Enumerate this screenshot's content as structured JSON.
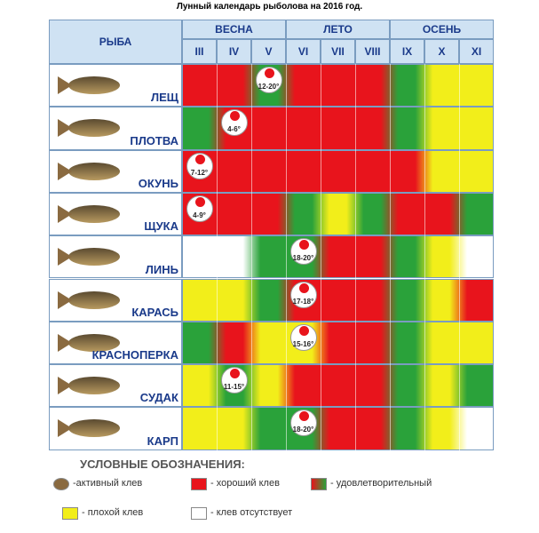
{
  "title": "Лунный календарь рыболова на 2016 год.",
  "table": {
    "fish_header": "РЫБА",
    "seasons": [
      {
        "name": "ВЕСНА",
        "months": [
          "III",
          "IV",
          "V"
        ]
      },
      {
        "name": "ЛЕТО",
        "months": [
          "VI",
          "VII",
          "VIII"
        ]
      },
      {
        "name": "ОСЕНЬ",
        "months": [
          "IX",
          "X",
          "XI"
        ]
      }
    ],
    "rows": [
      {
        "name": "ЛЕЩ",
        "colors": [
          "#e8141c",
          "#e8141c",
          "#2aa23a",
          "#e8141c",
          "#e8141c",
          "#e8141c",
          "#2aa23a",
          "#f2ee1a",
          "#f2ee1a"
        ],
        "badge": {
          "text": "12-20°",
          "month": 2
        }
      },
      {
        "name": "ПЛОТВА",
        "colors": [
          "#2aa23a",
          "#e8141c",
          "#e8141c",
          "#e8141c",
          "#e8141c",
          "#e8141c",
          "#2aa23a",
          "#f2ee1a",
          "#f2ee1a"
        ],
        "badge": {
          "text": "4-6°",
          "month": 1
        }
      },
      {
        "name": "ОКУНЬ",
        "colors": [
          "#e8141c",
          "#e8141c",
          "#e8141c",
          "#e8141c",
          "#e8141c",
          "#e8141c",
          "#e8141c",
          "#f2ee1a",
          "#f2ee1a"
        ],
        "badge": {
          "text": "7-12°",
          "month": 0
        }
      },
      {
        "name": "ЩУКА",
        "colors": [
          "#e8141c",
          "#e8141c",
          "#e8141c",
          "#2aa23a",
          "#f2ee1a",
          "#2aa23a",
          "#e8141c",
          "#e8141c",
          "#2aa23a"
        ],
        "badge": {
          "text": "4-9°",
          "month": 0
        }
      },
      {
        "name": "ЛИНЬ",
        "colors": [
          "#ffffff",
          "#ffffff",
          "#2aa23a",
          "#2aa23a",
          "#e8141c",
          "#e8141c",
          "#2aa23a",
          "#f2ee1a",
          "#ffffff"
        ],
        "badge": {
          "text": "18-20°",
          "month": 3
        }
      },
      {
        "name": "КАРАСЬ",
        "colors": [
          "#f2ee1a",
          "#f2ee1a",
          "#2aa23a",
          "#e8141c",
          "#e8141c",
          "#e8141c",
          "#2aa23a",
          "#f2ee1a",
          "#e8141c"
        ],
        "badge": {
          "text": "17-18°",
          "month": 3
        }
      },
      {
        "name": "КРАСНОПЕРКА",
        "colors": [
          "#2aa23a",
          "#e8141c",
          "#f2ee1a",
          "#f2ee1a",
          "#e8141c",
          "#e8141c",
          "#2aa23a",
          "#f2ee1a",
          "#f2ee1a"
        ],
        "badge": {
          "text": "15-16°",
          "month": 3
        }
      },
      {
        "name": "СУДАК",
        "colors": [
          "#f2ee1a",
          "#2aa23a",
          "#f2ee1a",
          "#e8141c",
          "#e8141c",
          "#e8141c",
          "#2aa23a",
          "#f2ee1a",
          "#2aa23a"
        ],
        "badge": {
          "text": "11-15°",
          "month": 1
        }
      },
      {
        "name": "КАРП",
        "colors": [
          "#f2ee1a",
          "#f2ee1a",
          "#2aa23a",
          "#2aa23a",
          "#e8141c",
          "#e8141c",
          "#2aa23a",
          "#f2ee1a",
          "#ffffff"
        ],
        "badge": {
          "text": "18-20°",
          "month": 3
        }
      }
    ]
  },
  "legend": {
    "title": "УСЛОВНЫЕ ОБОЗНАЧЕНИЯ:",
    "items": [
      {
        "label": "-активный клев",
        "color": "badge"
      },
      {
        "label": "- хороший клев",
        "color": "#e8141c"
      },
      {
        "label": "- удовлетворительный",
        "color": "gradient"
      },
      {
        "label": "- плохой клев",
        "color": "#f2ee1a"
      },
      {
        "label": "- клев отсутствует",
        "color": "#ffffff"
      }
    ]
  }
}
